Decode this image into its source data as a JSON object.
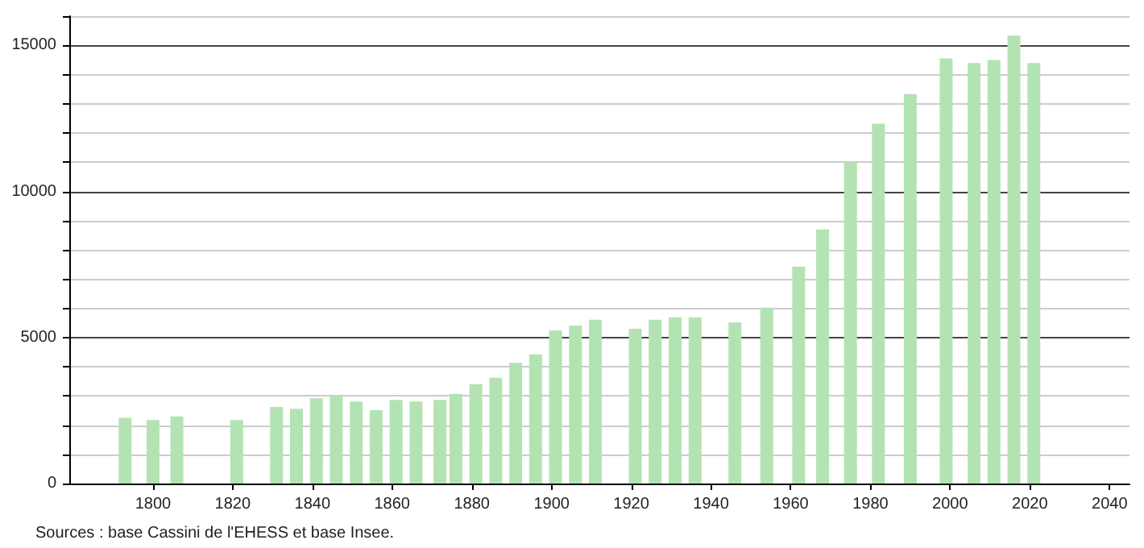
{
  "chart_data": {
    "type": "bar",
    "x": [
      1793,
      1800,
      1806,
      1821,
      1831,
      1836,
      1841,
      1846,
      1851,
      1856,
      1861,
      1866,
      1872,
      1876,
      1881,
      1886,
      1891,
      1896,
      1901,
      1906,
      1911,
      1921,
      1926,
      1931,
      1936,
      1946,
      1954,
      1962,
      1968,
      1975,
      1982,
      1990,
      1999,
      2006,
      2011,
      2016,
      2021
    ],
    "values": [
      2250,
      2170,
      2300,
      2170,
      2620,
      2560,
      2920,
      2990,
      2810,
      2510,
      2860,
      2810,
      2860,
      3070,
      3400,
      3620,
      4130,
      4420,
      5240,
      5410,
      5610,
      5300,
      5610,
      5690,
      5690,
      5520,
      6020,
      7420,
      8700,
      10990,
      12320,
      13330,
      14550,
      14390,
      14500,
      15330,
      14390
    ],
    "color": "#b3e3b3",
    "xlim": [
      1779,
      2045
    ],
    "xticks": [
      1800,
      1820,
      1840,
      1860,
      1880,
      1900,
      1920,
      1940,
      1960,
      1980,
      2000,
      2020,
      2040
    ],
    "ylim": [
      0,
      16000
    ],
    "yticks": [
      0,
      {
        "value": 1000,
        "label": null
      },
      {
        "value": 2000,
        "label": null
      },
      {
        "value": 3000,
        "label": null
      },
      {
        "value": 4000,
        "label": null
      },
      5000,
      {
        "value": 6000,
        "label": null
      },
      {
        "value": 7000,
        "label": null
      },
      {
        "value": 8000,
        "label": null
      },
      {
        "value": 9000,
        "label": null
      },
      10000,
      {
        "value": 11000,
        "label": null
      },
      {
        "value": 12000,
        "label": null
      },
      {
        "value": 13000,
        "label": null
      },
      {
        "value": 14000,
        "label": null
      },
      15000,
      {
        "value": 16000,
        "label": null
      }
    ],
    "grid": "y",
    "annotations": [
      "Sources : base Cassini de l'EHESS et base Insee."
    ]
  }
}
